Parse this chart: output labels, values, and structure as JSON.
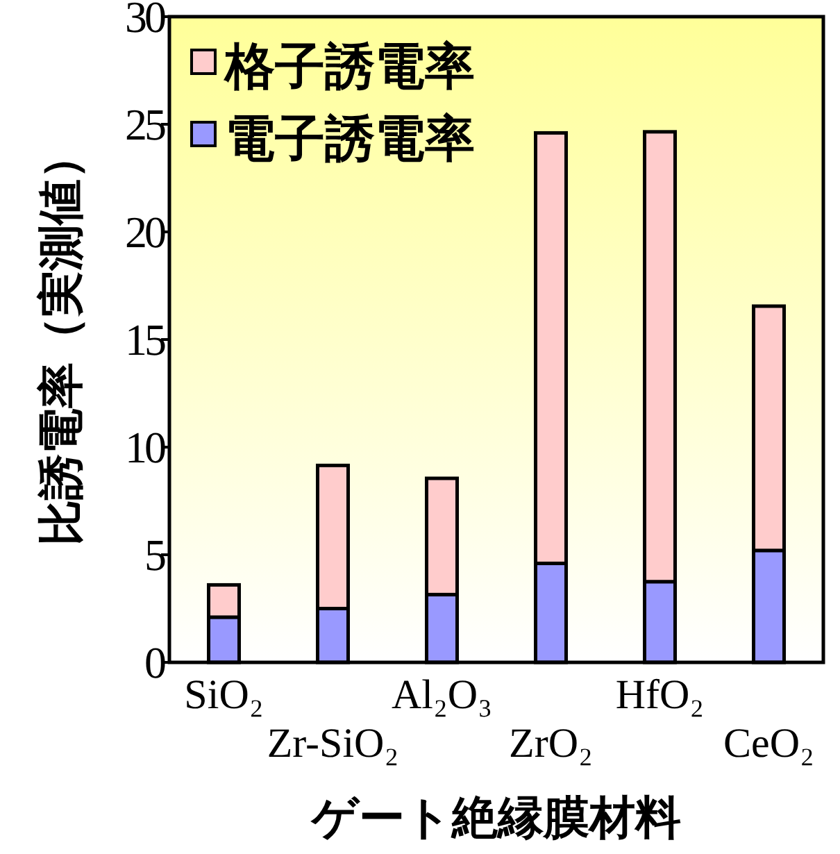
{
  "chart_data": {
    "type": "bar",
    "stacked": true,
    "xlabel": "ゲート絶縁膜材料",
    "ylabel": "比誘電率（実測値）",
    "categories": [
      "SiO₂",
      "Zr-SiO₂",
      "Al₂O₃",
      "ZrO₂",
      "HfO₂",
      "CeO₂"
    ],
    "series": [
      {
        "name": "電子誘電率",
        "color": "#9999ff",
        "values": [
          2.1,
          2.5,
          3.15,
          4.6,
          3.75,
          5.2
        ]
      },
      {
        "name": "格子誘電率",
        "color": "#ffcccc",
        "values": [
          1.5,
          6.65,
          5.4,
          20.0,
          20.9,
          11.35
        ]
      }
    ],
    "ylim": [
      0,
      30
    ],
    "yticks": [
      0,
      5,
      10,
      15,
      20,
      25,
      30
    ],
    "grid": false,
    "legend": "top left"
  }
}
